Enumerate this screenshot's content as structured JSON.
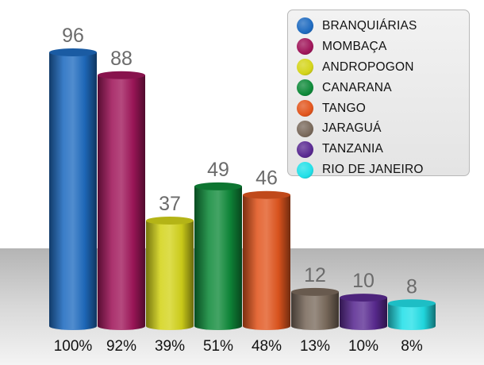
{
  "chart_data": {
    "type": "bar",
    "title": "",
    "xlabel": "",
    "ylabel": "",
    "categories": [
      "BRANQUIÁRIAS",
      "MOMBAÇA",
      "ANDROPOGON",
      "CANARANA",
      "TANGO",
      "JARAGUÁ",
      "TANZANIA",
      "RIO DE JANEIRO"
    ],
    "values": [
      96,
      88,
      37,
      49,
      46,
      12,
      10,
      8
    ],
    "percent_labels": [
      "100%",
      "92%",
      "39%",
      "51%",
      "48%",
      "13%",
      "10%",
      "8%"
    ],
    "colors": [
      "#1f6bc0",
      "#a0165a",
      "#d4d41a",
      "#0f8a3a",
      "#e2561e",
      "#7a6a5c",
      "#5a2a92",
      "#22e0e8"
    ],
    "ylim": [
      0,
      96
    ],
    "grid": false,
    "legend_position": "top-right"
  }
}
